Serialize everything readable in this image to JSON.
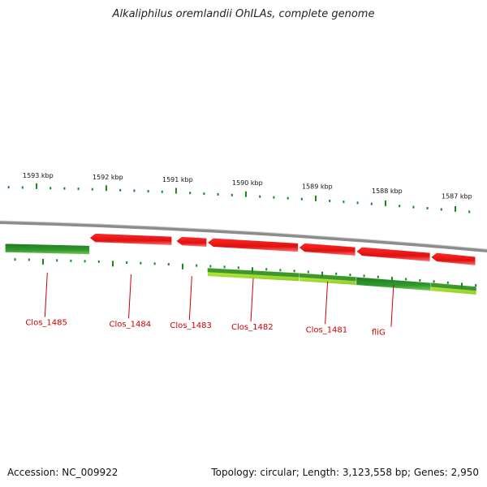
{
  "header": {
    "title": "Alkaliphilus oremlandii OhILAs, complete genome"
  },
  "footer": {
    "accession": "Accession: NC_009922",
    "stats": "Topology: circular; Length: 3,123,558 bp; Genes: 2,950"
  },
  "colors": {
    "forward_gene": "#ee1111",
    "reverse_gene": "#2a8a2a",
    "gc_light": "#aadd33",
    "backbone": "#888888",
    "tick": "#1a8a1a",
    "label": "#cc0000"
  },
  "scale": {
    "unit": "kbp",
    "ticks": [
      {
        "kbp": 1593,
        "label": "1593 kbp"
      },
      {
        "kbp": 1592,
        "label": "1592 kbp"
      },
      {
        "kbp": 1591,
        "label": "1591 kbp"
      },
      {
        "kbp": 1590,
        "label": "1590 kbp"
      },
      {
        "kbp": 1589,
        "label": "1589 kbp"
      },
      {
        "kbp": 1588,
        "label": "1588 kbp"
      },
      {
        "kbp": 1587,
        "label": "1587 kbp"
      }
    ]
  },
  "genes": [
    {
      "name": "Clos_1485",
      "start_kbp": 1593.45,
      "end_kbp": 1592.24,
      "strand": "reverse"
    },
    {
      "name": "Clos_1484",
      "start_kbp": 1592.24,
      "end_kbp": 1591.05,
      "strand": "forward"
    },
    {
      "name": "Clos_1483",
      "start_kbp": 1591.0,
      "end_kbp": 1590.55,
      "strand": "forward"
    },
    {
      "name": "Clos_1482",
      "start_kbp": 1590.55,
      "end_kbp": 1589.24,
      "strand": "forward"
    },
    {
      "name": "Clos_1481",
      "start_kbp": 1589.24,
      "end_kbp": 1588.42,
      "strand": "forward"
    },
    {
      "name": "fliG",
      "start_kbp": 1588.42,
      "end_kbp": 1587.35,
      "strand": "forward"
    },
    {
      "name": "",
      "start_kbp": 1587.35,
      "end_kbp": 1586.7,
      "strand": "forward"
    }
  ]
}
